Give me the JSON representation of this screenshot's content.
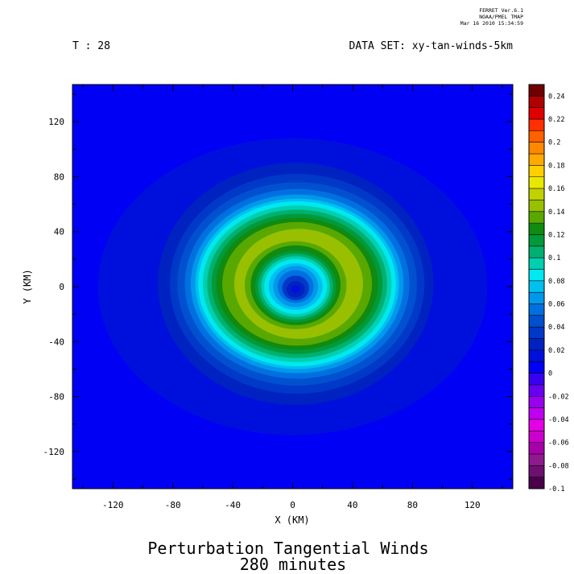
{
  "header": {
    "stamp_lines": [
      "FERRET  Ver.6.1",
      "NOAA/PMEL TMAP",
      "Mar 16 2010 15:34:59"
    ],
    "time_label": "T : 28",
    "dataset_label": "DATA SET: xy-tan-winds-5km"
  },
  "chart_data": {
    "type": "heatmap",
    "title": "Perturbation Tangential Winds",
    "subtitle": "280 minutes",
    "xlabel": "X (KM)",
    "ylabel": "Y (KM)",
    "xlim": [
      -147,
      147
    ],
    "ylim": [
      -147,
      147
    ],
    "x_ticks": [
      -120,
      -80,
      -40,
      0,
      40,
      80,
      120
    ],
    "y_ticks": [
      120,
      80,
      40,
      0,
      -40,
      -80,
      -120
    ],
    "grid": false,
    "legend": "right colorbar",
    "colorbar": {
      "levels": [
        -0.1,
        -0.09,
        -0.08,
        -0.07,
        -0.06,
        -0.05,
        -0.04,
        -0.03,
        -0.02,
        -0.01,
        0,
        0.01,
        0.02,
        0.03,
        0.04,
        0.05,
        0.06,
        0.07,
        0.08,
        0.09,
        0.1,
        0.11,
        0.12,
        0.13,
        0.14,
        0.15,
        0.16,
        0.17,
        0.18,
        0.19,
        0.2,
        0.21,
        0.22,
        0.23,
        0.24,
        0.25
      ],
      "colors": [
        "#4a004a",
        "#6e106e",
        "#8e1a8e",
        "#a800a8",
        "#cc00cc",
        "#e600e6",
        "#c000f0",
        "#9a00f0",
        "#6800f0",
        "#3800f0",
        "#0000f5",
        "#0010dc",
        "#0022c0",
        "#0038c8",
        "#0050d0",
        "#0070e0",
        "#0098ec",
        "#00c0f0",
        "#00e8f0",
        "#00d0b0",
        "#00b070",
        "#009a38",
        "#108a10",
        "#58a800",
        "#98c000",
        "#c0d000",
        "#e8e800",
        "#ffd000",
        "#ffaa00",
        "#ff8800",
        "#ff6000",
        "#ff3000",
        "#e00000",
        "#b00000",
        "#700000"
      ],
      "tick_labels": [
        "-0.1",
        "-0.08",
        "-0.06",
        "-0.04",
        "-0.02",
        "0",
        "0.02",
        "0.04",
        "0.06",
        "0.08",
        "0.1",
        "0.12",
        "0.14",
        "0.16",
        "0.18",
        "0.2",
        "0.22",
        "0.24"
      ]
    },
    "regions": [
      {
        "shape": "ellipse",
        "cx": 5,
        "cy": -5,
        "rx": 140,
        "ry": 140,
        "value": 0
      },
      {
        "shape": "ellipse",
        "cx": 0,
        "cy": 0,
        "rx": 130,
        "ry": 108,
        "value": 0.01
      },
      {
        "shape": "ellipse",
        "cx": 2,
        "cy": 2,
        "rx": 92,
        "ry": 88,
        "value": 0.02
      },
      {
        "shape": "ellipse",
        "cx": 3,
        "cy": 2,
        "rx": 85,
        "ry": 80,
        "value": 0.03
      },
      {
        "shape": "ellipse",
        "cx": 3,
        "cy": 2,
        "rx": 80,
        "ry": 74,
        "value": 0.04
      },
      {
        "shape": "ellipse",
        "cx": 3,
        "cy": 2,
        "rx": 75,
        "ry": 69,
        "value": 0.05
      },
      {
        "shape": "ellipse",
        "cx": 3,
        "cy": 2,
        "rx": 71,
        "ry": 65,
        "value": 0.06
      },
      {
        "shape": "ellipse",
        "cx": 3,
        "cy": 2,
        "rx": 68,
        "ry": 62,
        "value": 0.07
      },
      {
        "shape": "ellipse",
        "cx": 3,
        "cy": 2,
        "rx": 66,
        "ry": 60,
        "value": 0.08
      },
      {
        "shape": "ellipse",
        "cx": 3,
        "cy": 2,
        "rx": 63,
        "ry": 57,
        "value": 0.09
      },
      {
        "shape": "ellipse",
        "cx": 3,
        "cy": 2,
        "rx": 60,
        "ry": 54,
        "value": 0.1
      },
      {
        "shape": "ellipse",
        "cx": 3,
        "cy": 2,
        "rx": 57,
        "ry": 51,
        "value": 0.11
      },
      {
        "shape": "ellipse",
        "cx": 3,
        "cy": 2,
        "rx": 54,
        "ry": 48,
        "value": 0.12
      },
      {
        "shape": "ellipse",
        "cx": 3,
        "cy": 2,
        "rx": 50,
        "ry": 45,
        "value": 0.13
      },
      {
        "shape": "ellipse",
        "cx": 4,
        "cy": 2,
        "rx": 43,
        "ry": 40,
        "value": 0.14
      },
      {
        "shape": "ellipse",
        "cx": 2,
        "cy": 1,
        "rx": 34,
        "ry": 32,
        "value": 0.13
      },
      {
        "shape": "ellipse",
        "cx": 2,
        "cy": 1,
        "rx": 30,
        "ry": 29,
        "value": 0.12
      },
      {
        "shape": "ellipse",
        "cx": 2,
        "cy": 0,
        "rx": 27,
        "ry": 26,
        "value": 0.11
      },
      {
        "shape": "ellipse",
        "cx": 2,
        "cy": 0,
        "rx": 25,
        "ry": 24,
        "value": 0.1
      },
      {
        "shape": "ellipse",
        "cx": 2,
        "cy": 0,
        "rx": 23,
        "ry": 22,
        "value": 0.09
      },
      {
        "shape": "ellipse",
        "cx": 2,
        "cy": 0,
        "rx": 21,
        "ry": 20,
        "value": 0.08
      },
      {
        "shape": "ellipse",
        "cx": 2,
        "cy": 0,
        "rx": 18,
        "ry": 17,
        "value": 0.07
      },
      {
        "shape": "ellipse",
        "cx": 2,
        "cy": 0,
        "rx": 15,
        "ry": 15,
        "value": 0.06
      },
      {
        "shape": "ellipse",
        "cx": 2,
        "cy": 0,
        "rx": 12,
        "ry": 12,
        "value": 0.05
      },
      {
        "shape": "ellipse",
        "cx": 2,
        "cy": -1,
        "rx": 9,
        "ry": 9,
        "value": 0.03
      },
      {
        "shape": "ellipse",
        "cx": 2,
        "cy": -2,
        "rx": 6,
        "ry": 6,
        "value": 0.02
      },
      {
        "shape": "ellipse",
        "cx": 2,
        "cy": -2,
        "rx": 3,
        "ry": 3,
        "value": 0.01
      }
    ]
  }
}
